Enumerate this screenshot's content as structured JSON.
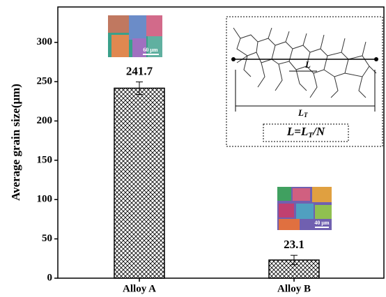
{
  "chart_data": {
    "type": "bar",
    "y_label": "Average grain size(μm)",
    "categories": [
      "Alloy A",
      "Alloy B"
    ],
    "values": [
      241.7,
      23.1
    ],
    "errors": [
      8,
      6
    ],
    "ylim": [
      0,
      345
    ],
    "yticks": [
      0,
      50,
      100,
      150,
      200,
      250,
      300
    ],
    "color": "#000000",
    "scale_bars": [
      "60 μm",
      "40 μm"
    ],
    "inset": {
      "segment_label": "L",
      "total_label": {
        "main": "L",
        "sub": "T"
      },
      "formula": {
        "lhs": "L=L",
        "sub": "T",
        "rest": "/N"
      }
    }
  }
}
